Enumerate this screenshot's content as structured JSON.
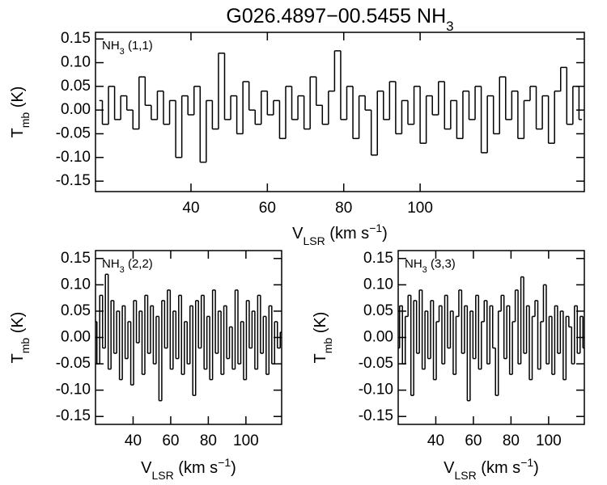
{
  "title": [
    "G026.4897−00.5455 NH",
    "3"
  ],
  "chart_data": [
    {
      "type": "line",
      "drawstyle": "steps-mid",
      "color": "#000000",
      "label": [
        "NH",
        "3",
        " (1,1)"
      ],
      "xlabel": [
        "V",
        "LSR",
        " (km s",
        "−1",
        ")"
      ],
      "ylabel": [
        "T",
        "mb",
        " (K)"
      ],
      "xlim": [
        15,
        143
      ],
      "ylim": [
        -0.172,
        0.164
      ],
      "xticks": [
        40,
        60,
        80,
        100
      ],
      "yticks": [
        0.15,
        {
          "value": 0.1,
          "label": "0.10"
        },
        0.05,
        {
          "value": 0,
          "label": "0.00"
        },
        -0.05,
        {
          "value": -0.1,
          "label": "-0.10"
        },
        -0.15
      ],
      "x": [
        16,
        17.6,
        19.2,
        20.8,
        22.4,
        24,
        25.6,
        27.2,
        28.8,
        30.4,
        32,
        33.6,
        35.2,
        36.8,
        38.4,
        40,
        41.6,
        43.2,
        44.8,
        46.4,
        48,
        49.6,
        51.2,
        52.8,
        54.4,
        56,
        57.6,
        59.2,
        60.8,
        62.4,
        64,
        65.6,
        67.2,
        68.8,
        70.4,
        72,
        73.6,
        75.2,
        76.8,
        78.4,
        80,
        81.6,
        83.2,
        84.8,
        86.4,
        88,
        89.6,
        91.2,
        92.8,
        94.4,
        96,
        97.6,
        99.2,
        100.8,
        102.4,
        104,
        105.6,
        107.2,
        108.8,
        110.4,
        112,
        113.6,
        115.2,
        116.8,
        118.4,
        120,
        121.6,
        123.2,
        124.8,
        126.4,
        128,
        129.6,
        131.2,
        132.8,
        134.4,
        136,
        137.6,
        139.2,
        140.8,
        142.4
      ],
      "values": [
        0.02,
        -0.03,
        0.05,
        -0.02,
        0.03,
        0.0,
        -0.04,
        0.07,
        0.01,
        -0.02,
        0.04,
        -0.03,
        0.02,
        -0.1,
        0.03,
        -0.01,
        0.05,
        -0.11,
        0.02,
        -0.04,
        0.12,
        -0.02,
        0.03,
        -0.05,
        0.06,
        0.0,
        -0.03,
        0.04,
        -0.01,
        0.02,
        -0.06,
        0.05,
        -0.02,
        0.03,
        -0.04,
        0.07,
        0.01,
        -0.03,
        0.04,
        0.125,
        -0.02,
        0.05,
        -0.06,
        0.03,
        0.0,
        -0.095,
        0.04,
        -0.02,
        0.06,
        -0.05,
        0.02,
        -0.03,
        0.05,
        -0.07,
        0.03,
        -0.01,
        0.06,
        -0.04,
        0.02,
        -0.06,
        0.04,
        -0.02,
        0.05,
        -0.09,
        0.03,
        -0.05,
        0.07,
        -0.02,
        0.04,
        -0.06,
        0.02,
        0.05,
        -0.04,
        0.03,
        -0.07,
        0.04,
        0.09,
        -0.03,
        0.05,
        -0.02
      ]
    },
    {
      "type": "line",
      "drawstyle": "steps-mid",
      "color": "#000000",
      "label": [
        "NH",
        "3",
        " (2,2)"
      ],
      "xlabel": [
        "V",
        "LSR",
        " (km s",
        "−1",
        ")"
      ],
      "ylabel": [
        "T",
        "mb",
        " (K)"
      ],
      "xlim": [
        20,
        119
      ],
      "ylim": [
        -0.165,
        0.165
      ],
      "xticks": [
        40,
        60,
        80,
        100
      ],
      "yticks": [
        0.15,
        {
          "value": 0.1,
          "label": "0.10"
        },
        0.05,
        {
          "value": 0,
          "label": "0.00"
        },
        -0.05,
        {
          "value": -0.1,
          "label": "-0.10"
        },
        -0.15
      ],
      "x": [
        20,
        21.5,
        23,
        24.5,
        26,
        27.5,
        29,
        30.5,
        32,
        33.5,
        35,
        36.5,
        38,
        39.5,
        41,
        42.5,
        44,
        45.5,
        47,
        48.5,
        50,
        51.5,
        53,
        54.5,
        56,
        57.5,
        59,
        60.5,
        62,
        63.5,
        65,
        66.5,
        68,
        69.5,
        71,
        72.5,
        74,
        75.5,
        77,
        78.5,
        80,
        81.5,
        83,
        84.5,
        86,
        87.5,
        89,
        90.5,
        92,
        93.5,
        95,
        96.5,
        98,
        99.5,
        101,
        102.5,
        104,
        105.5,
        107,
        108.5,
        110,
        111.5,
        113,
        114.5,
        116,
        117.5,
        119
      ],
      "values": [
        0.03,
        -0.05,
        0.08,
        -0.02,
        0.12,
        -0.06,
        0.07,
        -0.03,
        0.05,
        -0.08,
        0.06,
        -0.04,
        0.03,
        -0.09,
        0.07,
        -0.01,
        0.05,
        -0.07,
        0.08,
        -0.03,
        0.06,
        -0.05,
        0.04,
        -0.12,
        0.07,
        -0.02,
        0.09,
        -0.06,
        0.05,
        -0.04,
        0.08,
        -0.07,
        0.03,
        -0.05,
        0.06,
        -0.11,
        0.07,
        -0.02,
        0.08,
        -0.06,
        0.04,
        -0.08,
        0.09,
        -0.03,
        0.05,
        -0.07,
        0.06,
        -0.04,
        0.02,
        -0.06,
        0.09,
        -0.05,
        0.03,
        -0.08,
        0.07,
        -0.02,
        0.05,
        -0.06,
        0.08,
        -0.03,
        0.04,
        -0.07,
        0.06,
        -0.05,
        0.03,
        -0.02,
        0.01
      ]
    },
    {
      "type": "line",
      "drawstyle": "steps-mid",
      "color": "#000000",
      "label": [
        "NH",
        "3",
        " (3,3)"
      ],
      "xlabel": [
        "V",
        "LSR",
        " (km s",
        "−1",
        ")"
      ],
      "ylabel": [
        "T",
        "mb",
        " (K)"
      ],
      "xlim": [
        20,
        119
      ],
      "ylim": [
        -0.165,
        0.165
      ],
      "xticks": [
        40,
        60,
        80,
        100
      ],
      "yticks": [
        0.15,
        {
          "value": 0.1,
          "label": "0.10"
        },
        0.05,
        {
          "value": 0,
          "label": "0.00"
        },
        -0.05,
        {
          "value": -0.1,
          "label": "-0.10"
        },
        -0.15
      ],
      "x": [
        20,
        21.5,
        23,
        24.5,
        26,
        27.5,
        29,
        30.5,
        32,
        33.5,
        35,
        36.5,
        38,
        39.5,
        41,
        42.5,
        44,
        45.5,
        47,
        48.5,
        50,
        51.5,
        53,
        54.5,
        56,
        57.5,
        59,
        60.5,
        62,
        63.5,
        65,
        66.5,
        68,
        69.5,
        71,
        72.5,
        74,
        75.5,
        77,
        78.5,
        80,
        81.5,
        83,
        84.5,
        86,
        87.5,
        89,
        90.5,
        92,
        93.5,
        95,
        96.5,
        98,
        99.5,
        101,
        102.5,
        104,
        105.5,
        107,
        108.5,
        110,
        111.5,
        113,
        114.5,
        116,
        117.5,
        119
      ],
      "values": [
        -0.02,
        0.06,
        -0.05,
        0.04,
        0.08,
        -0.11,
        0.07,
        -0.03,
        0.09,
        -0.06,
        0.05,
        -0.04,
        0.07,
        -0.08,
        0.03,
        0.06,
        -0.05,
        0.08,
        -0.02,
        0.05,
        -0.07,
        0.04,
        0.09,
        -0.03,
        0.06,
        -0.12,
        0.05,
        -0.04,
        0.08,
        -0.06,
        0.03,
        0.07,
        -0.05,
        0.06,
        -0.02,
        -0.11,
        0.05,
        0.08,
        -0.04,
        0.06,
        -0.07,
        0.03,
        0.09,
        -0.05,
        0.115,
        -0.03,
        0.06,
        -0.08,
        0.04,
        0.07,
        -0.06,
        0.03,
        0.1,
        -0.05,
        0.04,
        -0.07,
        0.06,
        -0.03,
        0.05,
        -0.08,
        0.04,
        0.02,
        -0.05,
        0.06,
        -0.03,
        0.04,
        -0.02
      ]
    }
  ]
}
